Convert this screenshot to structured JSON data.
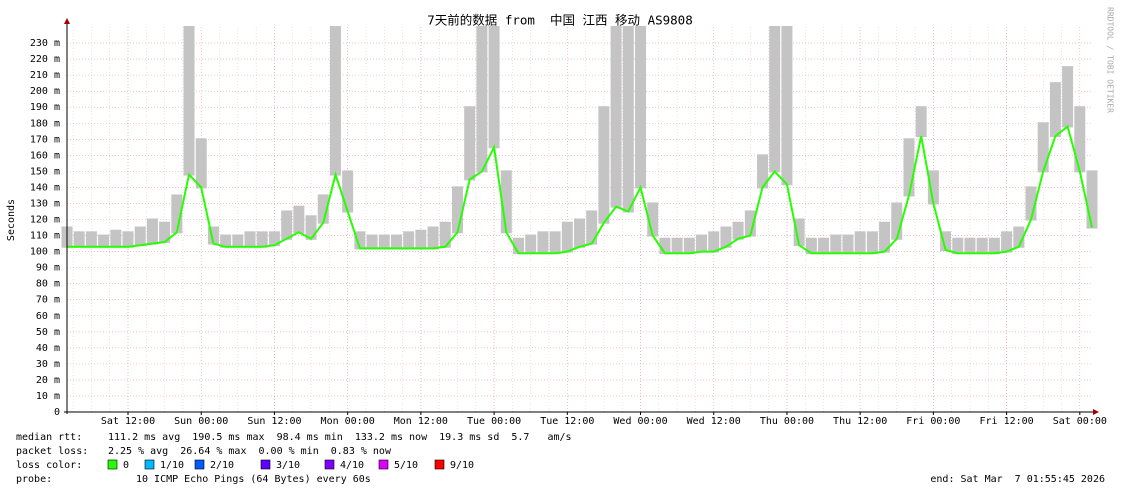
{
  "chart_data": {
    "type": "line",
    "title": "7天前的数据 from  中国 江西 移动 AS9808",
    "y_label": "Seconds",
    "side_note": "RRDTOOL / TOBI OETIKER",
    "grid": true,
    "xlim": [
      0,
      168
    ],
    "xticks": [
      {
        "value": 10,
        "label": "Sat 12:00"
      },
      {
        "value": 22,
        "label": "Sun 00:00"
      },
      {
        "value": 34,
        "label": "Sun 12:00"
      },
      {
        "value": 46,
        "label": "Mon 00:00"
      },
      {
        "value": 58,
        "label": "Mon 12:00"
      },
      {
        "value": 70,
        "label": "Tue 00:00"
      },
      {
        "value": 82,
        "label": "Tue 12:00"
      },
      {
        "value": 94,
        "label": "Wed 00:00"
      },
      {
        "value": 106,
        "label": "Wed 12:00"
      },
      {
        "value": 118,
        "label": "Thu 00:00"
      },
      {
        "value": 130,
        "label": "Thu 12:00"
      },
      {
        "value": 142,
        "label": "Fri 00:00"
      },
      {
        "value": 154,
        "label": "Fri 12:00"
      },
      {
        "value": 166,
        "label": "Sat 00:00"
      }
    ],
    "ylim": [
      0,
      0.24
    ],
    "yticks": [
      0,
      {
        "value": 0.01,
        "label": "10 m"
      },
      {
        "value": 0.02,
        "label": "20 m"
      },
      {
        "value": 0.03,
        "label": "30 m"
      },
      {
        "value": 0.04,
        "label": "40 m"
      },
      {
        "value": 0.05,
        "label": "50 m"
      },
      {
        "value": 0.06,
        "label": "60 m"
      },
      {
        "value": 0.07,
        "label": "70 m"
      },
      {
        "value": 0.08,
        "label": "80 m"
      },
      {
        "value": 0.09,
        "label": "90 m"
      },
      {
        "value": 0.1,
        "label": "100 m"
      },
      {
        "value": 0.11,
        "label": "110 m"
      },
      {
        "value": 0.12,
        "label": "120 m"
      },
      {
        "value": 0.13,
        "label": "130 m"
      },
      {
        "value": 0.14,
        "label": "140 m"
      },
      {
        "value": 0.15,
        "label": "150 m"
      },
      {
        "value": 0.16,
        "label": "160 m"
      },
      {
        "value": 0.17,
        "label": "170 m"
      },
      {
        "value": 0.18,
        "label": "180 m"
      },
      {
        "value": 0.19,
        "label": "190 m"
      },
      {
        "value": 0.2,
        "label": "200 m"
      },
      {
        "value": 0.21,
        "label": "210 m"
      },
      {
        "value": 0.22,
        "label": "220 m"
      },
      {
        "value": 0.23,
        "label": "230 m"
      }
    ],
    "x": [
      0,
      2,
      4,
      6,
      8,
      10,
      12,
      14,
      16,
      18,
      20,
      22,
      24,
      26,
      28,
      30,
      32,
      34,
      36,
      38,
      40,
      42,
      44,
      46,
      48,
      50,
      52,
      54,
      56,
      58,
      60,
      62,
      64,
      66,
      68,
      70,
      72,
      74,
      76,
      78,
      80,
      82,
      84,
      86,
      88,
      90,
      92,
      94,
      96,
      98,
      100,
      102,
      104,
      106,
      108,
      110,
      112,
      114,
      116,
      118,
      120,
      122,
      124,
      126,
      128,
      130,
      132,
      134,
      136,
      138,
      140,
      142,
      144,
      146,
      148,
      150,
      152,
      154,
      156,
      158,
      160,
      162,
      164,
      166,
      168
    ],
    "series": [
      {
        "color": "#c4c4c4",
        "values": [
          0.115,
          0.112,
          0.112,
          0.11,
          0.113,
          0.112,
          0.115,
          0.12,
          0.118,
          0.135,
          0.24,
          0.17,
          0.115,
          0.11,
          0.11,
          0.112,
          0.112,
          0.112,
          0.125,
          0.128,
          0.122,
          0.135,
          0.24,
          0.15,
          0.112,
          0.11,
          0.11,
          0.11,
          0.112,
          0.113,
          0.115,
          0.118,
          0.14,
          0.19,
          0.24,
          0.24,
          0.15,
          0.108,
          0.11,
          0.112,
          0.112,
          0.118,
          0.12,
          0.125,
          0.19,
          0.24,
          0.24,
          0.24,
          0.13,
          0.108,
          0.108,
          0.108,
          0.11,
          0.112,
          0.115,
          0.118,
          0.125,
          0.16,
          0.24,
          0.24,
          0.12,
          0.108,
          0.108,
          0.11,
          0.11,
          0.112,
          0.112,
          0.118,
          0.13,
          0.17,
          0.19,
          0.15,
          0.112,
          0.108,
          0.108,
          0.108,
          0.108,
          0.112,
          0.115,
          0.14,
          0.18,
          0.205,
          0.215,
          0.19,
          0.15
        ]
      },
      {
        "color": "#26ff00",
        "values": [
          0.103,
          0.103,
          0.103,
          0.103,
          0.103,
          0.103,
          0.104,
          0.105,
          0.106,
          0.112,
          0.148,
          0.14,
          0.105,
          0.103,
          0.103,
          0.103,
          0.103,
          0.104,
          0.108,
          0.112,
          0.108,
          0.118,
          0.148,
          0.125,
          0.102,
          0.102,
          0.102,
          0.102,
          0.102,
          0.102,
          0.102,
          0.103,
          0.112,
          0.145,
          0.15,
          0.165,
          0.112,
          0.099,
          0.099,
          0.099,
          0.099,
          0.1,
          0.103,
          0.105,
          0.118,
          0.128,
          0.125,
          0.14,
          0.11,
          0.099,
          0.099,
          0.099,
          0.1,
          0.1,
          0.103,
          0.108,
          0.11,
          0.14,
          0.15,
          0.142,
          0.104,
          0.099,
          0.099,
          0.099,
          0.099,
          0.099,
          0.099,
          0.1,
          0.108,
          0.135,
          0.172,
          0.13,
          0.101,
          0.099,
          0.099,
          0.099,
          0.099,
          0.1,
          0.103,
          0.12,
          0.15,
          0.172,
          0.178,
          0.15,
          0.115
        ]
      }
    ],
    "stats": [
      {
        "label": "median rtt:",
        "text": "111.2 ms avg  190.5 ms max  98.4 ms min  133.2 ms now  19.3 ms sd  5.7   am/s"
      },
      {
        "label": "packet loss:",
        "text": "2.25 % avg  26.64 % max  0.00 % min  0.83 % now"
      }
    ],
    "loss_legend": {
      "label": "loss color:",
      "items": [
        {
          "label": "0",
          "color": "#26ff00"
        },
        {
          "label": "1/10",
          "color": "#00b8ff"
        },
        {
          "label": "2/10",
          "color": "#0059ff"
        },
        {
          "label": "3/10",
          "color": "#5e00ff"
        },
        {
          "label": "4/10",
          "color": "#7e00ff"
        },
        {
          "label": "5/10",
          "color": "#dd00ff"
        },
        {
          "label": "9/10",
          "color": "#ff0000"
        }
      ]
    },
    "probe": {
      "label": "probe:",
      "text": "10 ICMP Echo Pings (64 Bytes) every 60s"
    },
    "end": "end: Sat Mar  7 01:55:45 2026"
  }
}
